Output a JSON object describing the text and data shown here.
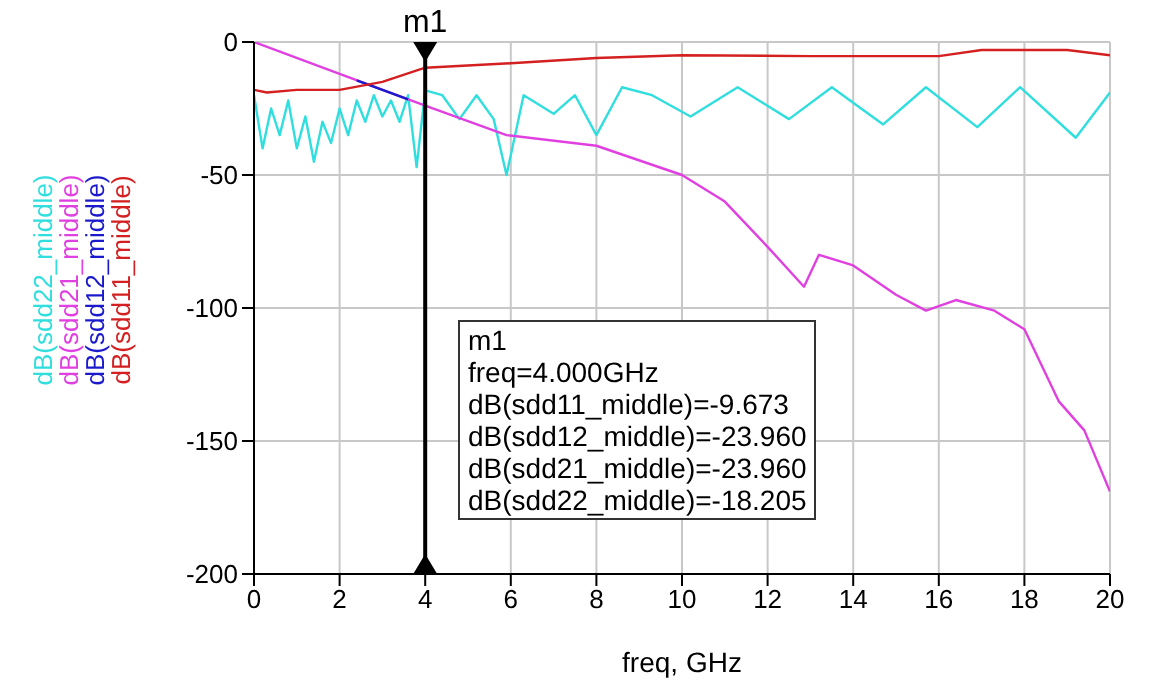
{
  "chart_data": {
    "type": "line",
    "xlabel": "freq, GHz",
    "xlim": [
      0,
      20
    ],
    "xticks": [
      0,
      2,
      4,
      6,
      8,
      10,
      12,
      14,
      16,
      18,
      20
    ],
    "ylim": [
      -200,
      0
    ],
    "yticks": [
      0,
      -50,
      -100,
      -150,
      -200
    ],
    "grid": true,
    "legend": "left",
    "marker": "none",
    "line_style": "solid",
    "series": [
      {
        "name": "dB(sdd22_middle)",
        "color": "#30dede",
        "x": [
          0,
          0.2,
          0.4,
          0.6,
          0.8,
          1.0,
          1.2,
          1.4,
          1.6,
          1.8,
          2.0,
          2.2,
          2.4,
          2.6,
          2.8,
          3.0,
          3.2,
          3.4,
          3.6,
          3.8,
          4.0,
          4.4,
          4.8,
          5.2,
          5.6,
          5.9,
          6.3,
          7.0,
          7.5,
          8.0,
          8.6,
          9.3,
          10.2,
          11.3,
          12.5,
          13.5,
          14.7,
          15.7,
          16.9,
          17.9,
          19.2,
          20
        ],
        "values": [
          -20,
          -40,
          -25,
          -35,
          -22,
          -40,
          -28,
          -45,
          -30,
          -38,
          -25,
          -35,
          -22,
          -30,
          -20,
          -28,
          -22,
          -30,
          -20,
          -47,
          -18.2,
          -20,
          -29,
          -20,
          -29,
          -50,
          -20,
          -27,
          -20,
          -35,
          -17,
          -20,
          -28,
          -17,
          -29,
          -17,
          -31,
          -17,
          -32,
          -17,
          -36,
          -19
        ]
      },
      {
        "name": "dB(sdd21_middle)",
        "color": "#e040e0",
        "x": [
          0,
          2,
          4,
          5.9,
          8,
          10,
          11,
          12,
          12.85,
          13.2,
          14,
          15,
          15.7,
          16.4,
          17.3,
          18,
          18.8,
          19.4,
          20
        ],
        "values": [
          0,
          -12,
          -23.96,
          -35,
          -39,
          -50,
          -60,
          -77,
          -92,
          -80,
          -84,
          -95,
          -101,
          -97,
          -101,
          -108,
          -135,
          -146,
          -169
        ]
      },
      {
        "name": "dB(sdd12_middle)",
        "color": "#1a1acc",
        "x": [
          2.4,
          3,
          3.6
        ],
        "values": [
          -14.4,
          -18,
          -21.6
        ]
      },
      {
        "name": "dB(sdd11_middle)",
        "color": "#d42020",
        "x": [
          0,
          0.3,
          1,
          2,
          3,
          4,
          6,
          8,
          10,
          13,
          16,
          17,
          19,
          20
        ],
        "values": [
          -18,
          -19,
          -18,
          -18,
          -15,
          -9.673,
          -8,
          -6,
          -5,
          -5.3,
          -5.3,
          -3,
          -3,
          -5
        ]
      }
    ],
    "ref_lines": [
      {
        "axis": "x",
        "value": 4,
        "label": "m1",
        "color": "#000000"
      }
    ],
    "annotations": [
      "m1",
      "freq=4.000GHz",
      "dB(sdd11_middle)=-9.673",
      "dB(sdd12_middle)=-23.960",
      "dB(sdd21_middle)=-23.960",
      "dB(sdd22_middle)=-18.205"
    ]
  }
}
